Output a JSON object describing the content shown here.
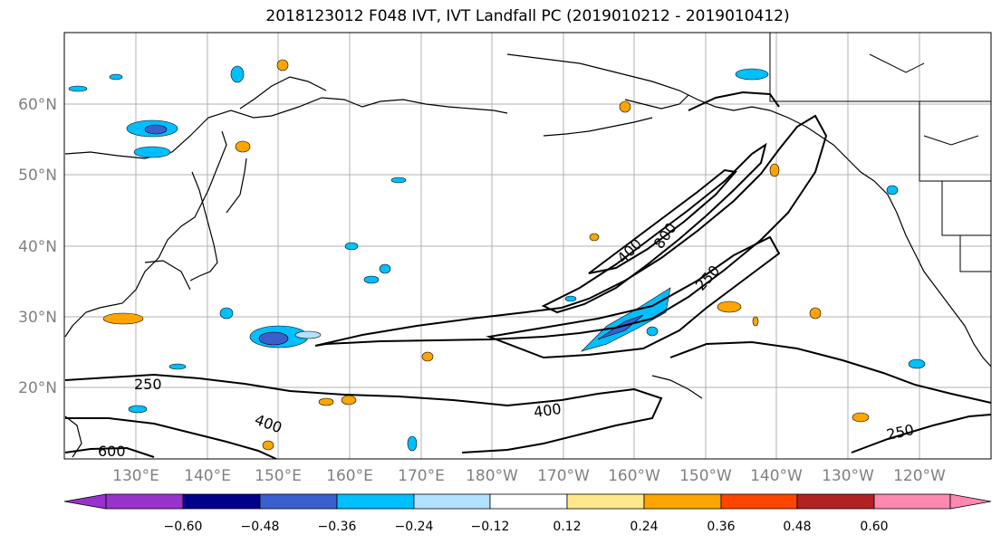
{
  "title": "2018123012 F048 IVT, IVT Landfall PC (2019010212 - 2019010412)",
  "map": {
    "lat_labels": [
      "60°N",
      "50°N",
      "40°N",
      "30°N",
      "20°N"
    ],
    "lon_labels": [
      "130°E",
      "140°E",
      "150°E",
      "160°E",
      "170°E",
      "180°W",
      "170°W",
      "160°W",
      "150°W",
      "140°W",
      "130°W",
      "120°W"
    ],
    "contour_labels": [
      "250",
      "400",
      "600",
      "400",
      "250",
      "400",
      "800",
      "250"
    ],
    "land_color": "#ffffff",
    "gridline_color": "#b0b0b0"
  },
  "colorbar": {
    "ticks": [
      "−0.60",
      "−0.48",
      "−0.36",
      "−0.24",
      "−0.12",
      "0.12",
      "0.24",
      "0.36",
      "0.48",
      "0.60"
    ],
    "colors": [
      "#9932cc",
      "#00008b",
      "#3a5fcd",
      "#00bfff",
      "#b0e2ff",
      "#ffffff",
      "#ffe88a",
      "#ffa500",
      "#ff4500",
      "#b22222",
      "#ff87b0"
    ]
  }
}
